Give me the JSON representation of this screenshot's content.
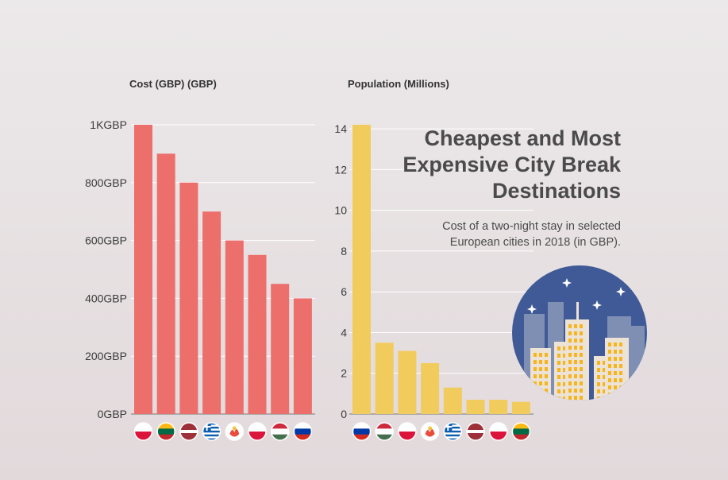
{
  "title": "Cheapest and Most\nExpensive City Break\nDestinations",
  "subtitle": "Cost of a two-night stay in selected\nEuropean cities in 2018 (in GBP).",
  "chart_data": [
    {
      "type": "bar",
      "title": "Cost (GBP) (GBP)",
      "categories": [
        "Poland",
        "Lithuania",
        "Latvia",
        "Greece",
        "Canary Islands",
        "Poland",
        "Hungary",
        "Russia"
      ],
      "values": [
        1000,
        900,
        800,
        700,
        600,
        550,
        450,
        400
      ],
      "yticks": [
        "0GBP",
        "200GBP",
        "400GBP",
        "600GBP",
        "800GBP",
        "1KGBP"
      ],
      "ylim": [
        0,
        1000
      ],
      "color": "#ec6f6c",
      "grid": true
    },
    {
      "type": "bar",
      "title": "Population (Millions)",
      "categories": [
        "Russia",
        "Hungary",
        "Poland",
        "Canary Islands",
        "Greece",
        "Latvia",
        "Poland",
        "Lithuania"
      ],
      "values": [
        14.2,
        3.5,
        3.1,
        2.5,
        1.3,
        0.7,
        0.7,
        0.6
      ],
      "yticks": [
        "0",
        "2",
        "4",
        "6",
        "8",
        "10",
        "12",
        "14"
      ],
      "ylim": [
        0,
        14.2
      ],
      "color": "#f2cb5d",
      "grid": true
    }
  ],
  "flags": {
    "Poland": [
      "#ffffff",
      "#dc143c"
    ],
    "Lithuania": [
      "#fdb913",
      "#006a44",
      "#c1272d"
    ],
    "Latvia": [
      "#9e3039",
      "#ffffff",
      "#9e3039"
    ],
    "Hungary": [
      "#cd2a3e",
      "#ffffff",
      "#436f4d"
    ],
    "Russia": [
      "#ffffff",
      "#0039a6",
      "#d52b1e"
    ],
    "Greece": [
      "#0d5eaf",
      "#ffffff"
    ],
    "Canary Islands": [
      "#ffffff",
      "#e94b3c",
      "#f3c23d"
    ]
  },
  "illustration": {
    "name": "city-skyline-icon",
    "sky": "#3f5a96",
    "building": "#ece3d6",
    "window": "#f6b51c"
  }
}
